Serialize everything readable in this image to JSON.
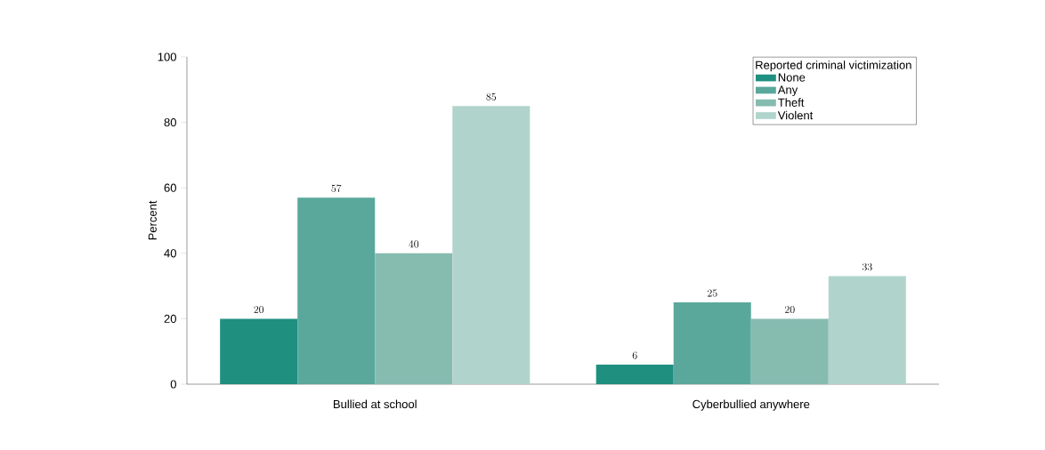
{
  "chart_data": {
    "type": "bar",
    "ylabel": "Percent",
    "categories": [
      "Bullied at school",
      "Cyberbullied anywhere"
    ],
    "series": [
      {
        "name": "None",
        "color": "#1f8f80",
        "values": [
          20,
          6
        ]
      },
      {
        "name": "Any",
        "color": "#5aa89c",
        "values": [
          57,
          25
        ]
      },
      {
        "name": "Theft",
        "color": "#86bbb0",
        "values": [
          40,
          20
        ]
      },
      {
        "name": "Violent",
        "color": "#b0d4cc",
        "values": [
          85,
          33
        ]
      }
    ],
    "legend_title": "Reported criminal victimization",
    "legend": "top right",
    "ylim": [
      0,
      100
    ],
    "yticks": [
      0,
      20,
      40,
      60,
      80,
      100
    ],
    "data_labels": true,
    "grid": false
  }
}
